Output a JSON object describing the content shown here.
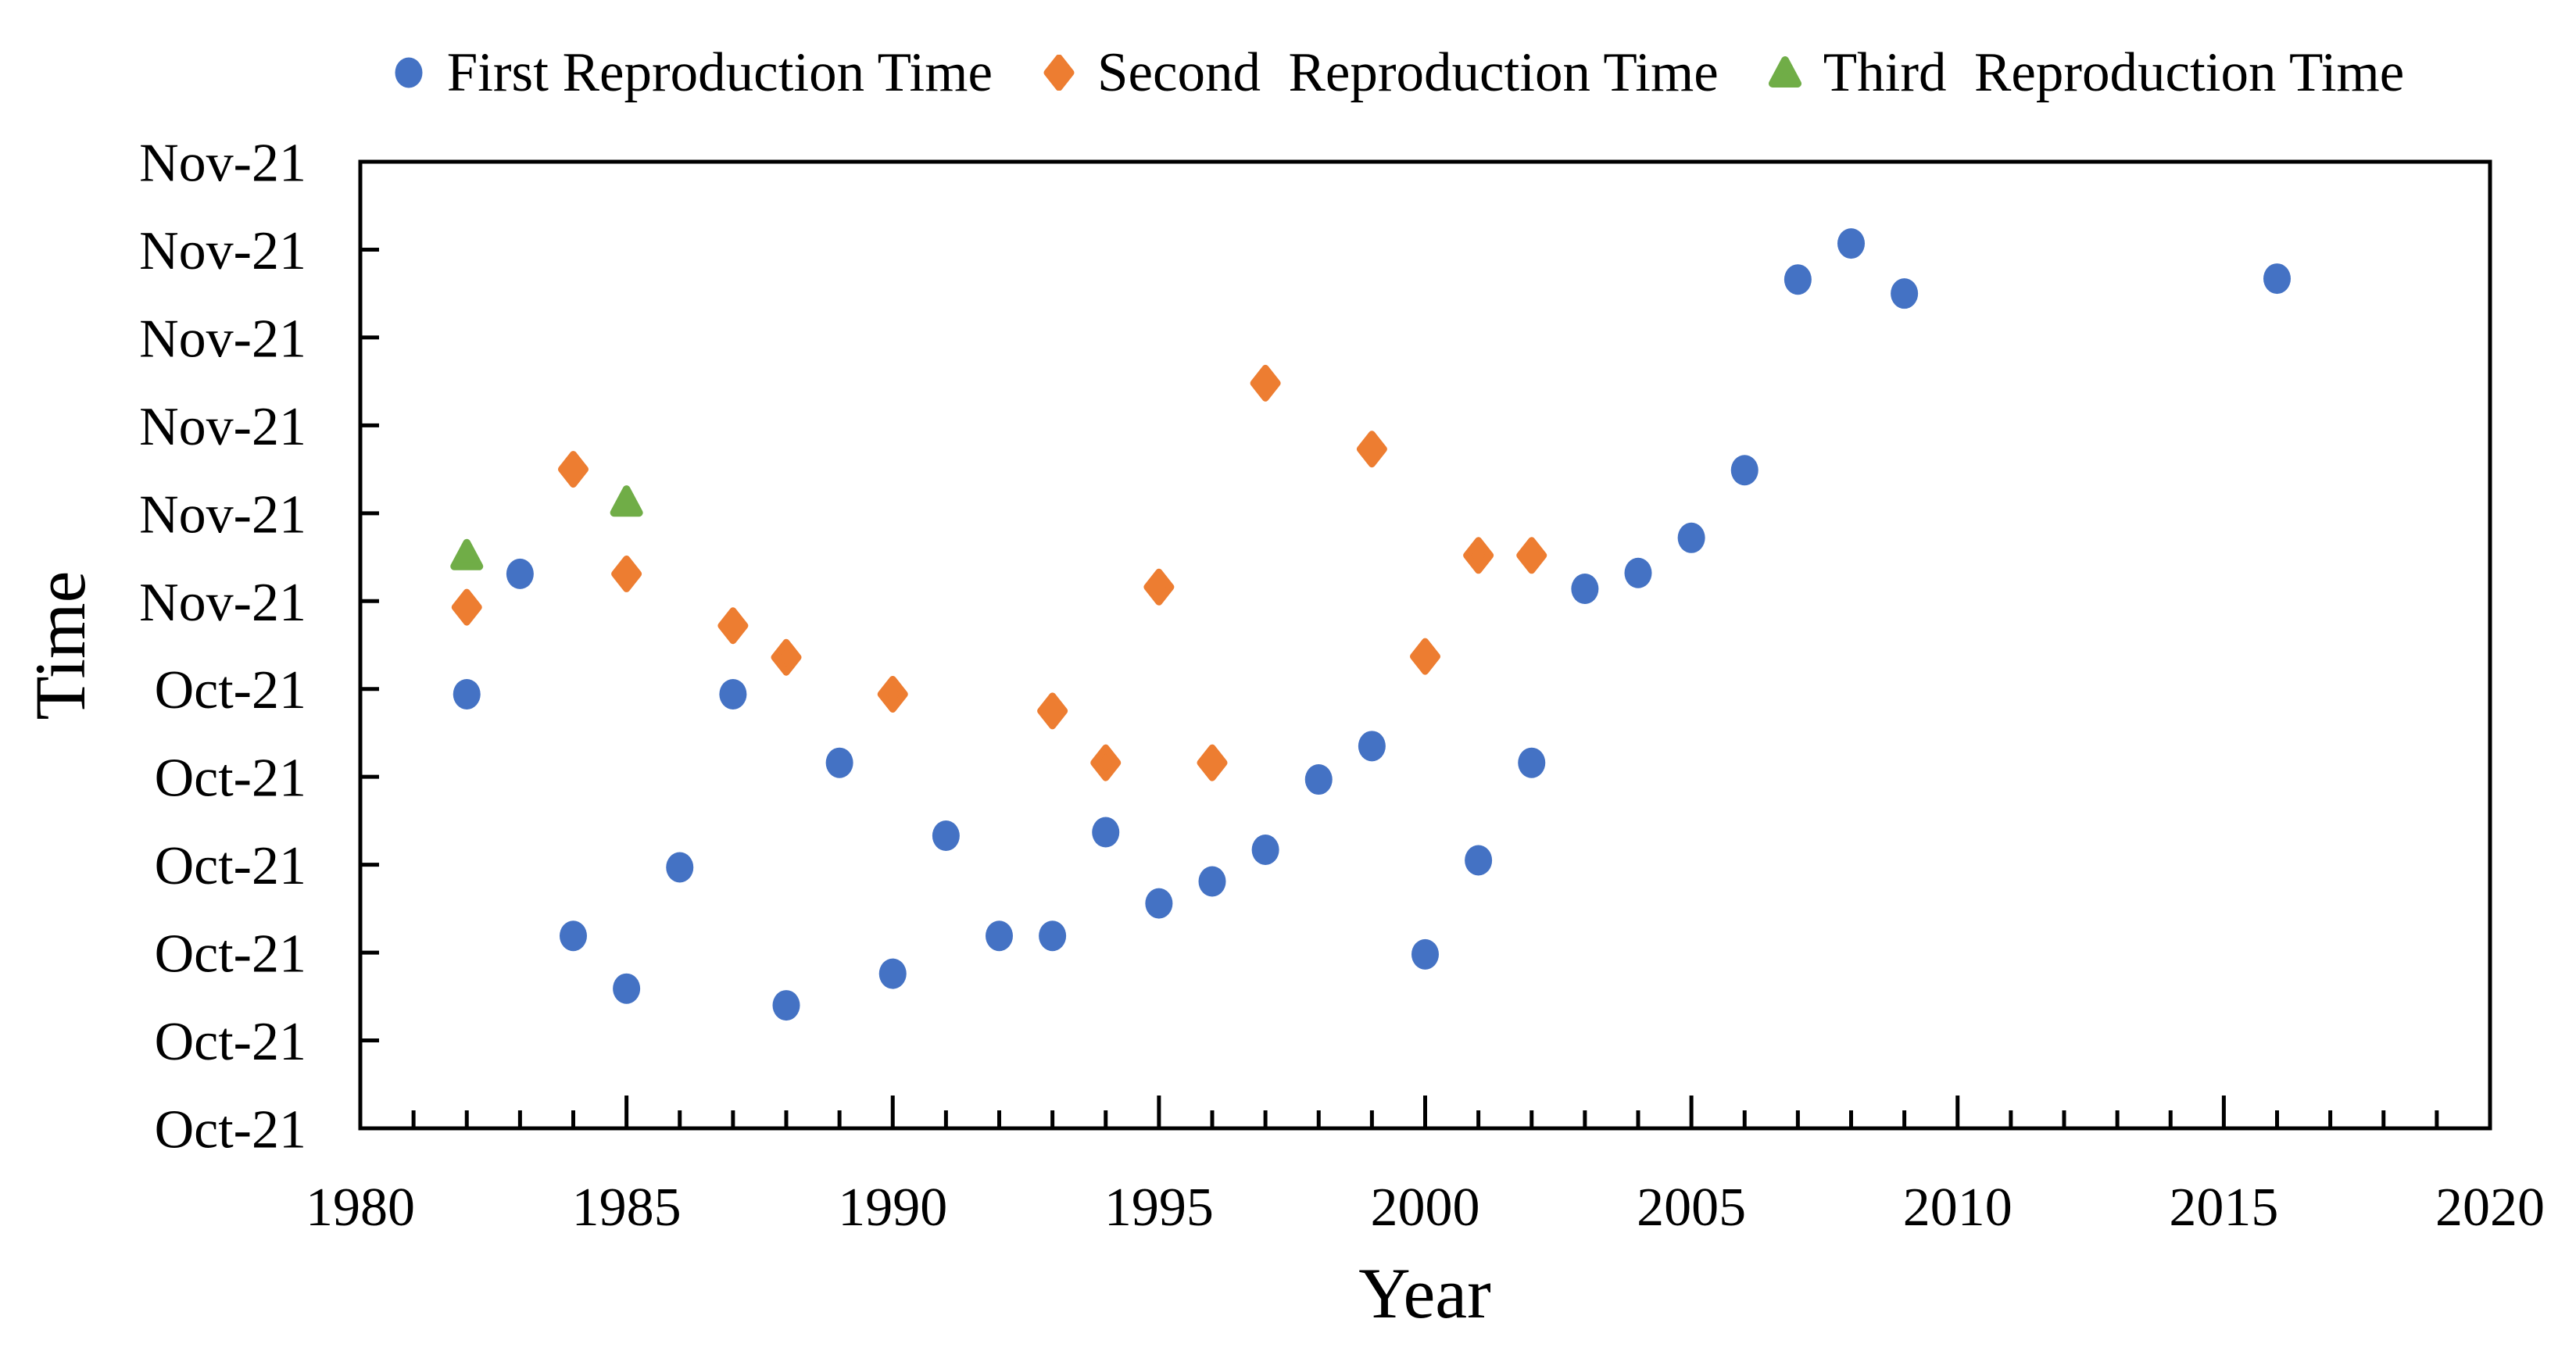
{
  "chart_data": {
    "type": "scatter",
    "title": "",
    "xlabel": "Year",
    "ylabel": "Time",
    "x_axis": {
      "min": 1980,
      "max": 2020,
      "major_tick_interval": 5,
      "minor_tick_interval": 1,
      "major_tick_labels": [
        "1980",
        "1985",
        "1990",
        "1995",
        "2000",
        "2005",
        "2010",
        "2015",
        "2020"
      ]
    },
    "y_axis": {
      "tick_count": 12,
      "tick_labels_bottom_to_top": [
        "Oct-21",
        "Oct-21",
        "Oct-21",
        "Oct-21",
        "Oct-21",
        "Oct-21",
        "Nov-21",
        "Nov-21",
        "Nov-21",
        "Nov-21",
        "Nov-21",
        "Nov-21"
      ],
      "value_units": "tick index from bottom axis (0 = bottom tick, 11 = top tick)"
    },
    "grid": false,
    "legend_position": "top-center",
    "axis_color": "#000000",
    "series": [
      {
        "name": "First Reproduction Time",
        "marker": "circle",
        "color": "#4472C4",
        "points": [
          {
            "x": 1982,
            "y": 4.94
          },
          {
            "x": 1983,
            "y": 6.31
          },
          {
            "x": 1984,
            "y": 2.19
          },
          {
            "x": 1985,
            "y": 1.59
          },
          {
            "x": 1986,
            "y": 2.97
          },
          {
            "x": 1987,
            "y": 4.94
          },
          {
            "x": 1988,
            "y": 1.4
          },
          {
            "x": 1989,
            "y": 4.16
          },
          {
            "x": 1990,
            "y": 1.76
          },
          {
            "x": 1991,
            "y": 3.33
          },
          {
            "x": 1992,
            "y": 2.19
          },
          {
            "x": 1993,
            "y": 2.19
          },
          {
            "x": 1994,
            "y": 3.37
          },
          {
            "x": 1995,
            "y": 2.56
          },
          {
            "x": 1996,
            "y": 2.81
          },
          {
            "x": 1997,
            "y": 3.17
          },
          {
            "x": 1998,
            "y": 3.97
          },
          {
            "x": 1999,
            "y": 4.35
          },
          {
            "x": 2000,
            "y": 1.98
          },
          {
            "x": 2001,
            "y": 3.05
          },
          {
            "x": 2002,
            "y": 4.16
          },
          {
            "x": 2003,
            "y": 6.14
          },
          {
            "x": 2004,
            "y": 6.32
          },
          {
            "x": 2005,
            "y": 6.72
          },
          {
            "x": 2006,
            "y": 7.49
          },
          {
            "x": 2007,
            "y": 9.66
          },
          {
            "x": 2008,
            "y": 10.07
          },
          {
            "x": 2009,
            "y": 9.5
          },
          {
            "x": 2016,
            "y": 9.67
          }
        ]
      },
      {
        "name": "Second  Reproduction Time",
        "marker": "diamond",
        "color": "#ED7D31",
        "points": [
          {
            "x": 1982,
            "y": 5.93
          },
          {
            "x": 1984,
            "y": 7.5
          },
          {
            "x": 1985,
            "y": 6.31
          },
          {
            "x": 1987,
            "y": 5.72
          },
          {
            "x": 1988,
            "y": 5.36
          },
          {
            "x": 1990,
            "y": 4.94
          },
          {
            "x": 1993,
            "y": 4.75
          },
          {
            "x": 1994,
            "y": 4.16
          },
          {
            "x": 1995,
            "y": 6.16
          },
          {
            "x": 1996,
            "y": 4.16
          },
          {
            "x": 1997,
            "y": 8.48
          },
          {
            "x": 1999,
            "y": 7.73
          },
          {
            "x": 2000,
            "y": 5.37
          },
          {
            "x": 2001,
            "y": 6.52
          },
          {
            "x": 2002,
            "y": 6.52
          }
        ]
      },
      {
        "name": "Third  Reproduction Time",
        "marker": "triangle",
        "color": "#70AD47",
        "points": [
          {
            "x": 1982,
            "y": 6.52
          },
          {
            "x": 1985,
            "y": 7.13
          }
        ]
      }
    ]
  },
  "titles": {
    "x": "Year",
    "y": "Time"
  }
}
